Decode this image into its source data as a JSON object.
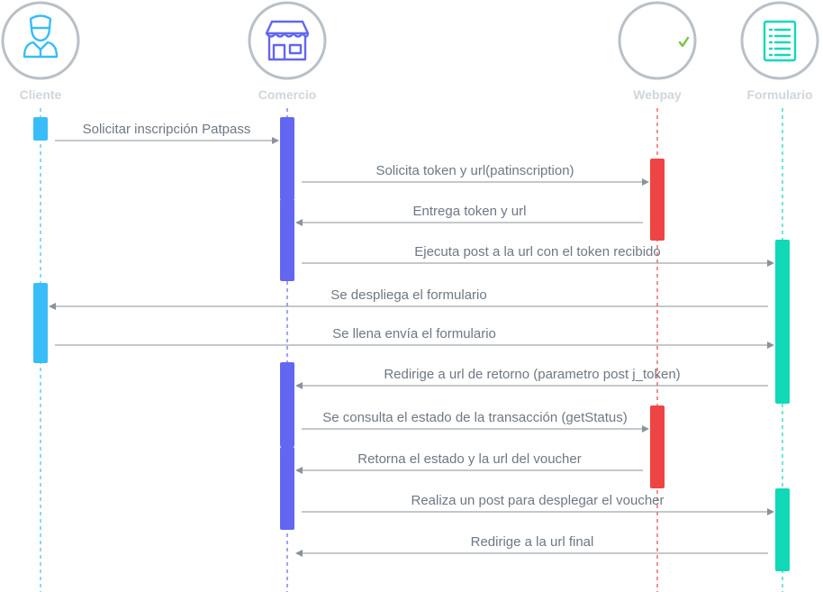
{
  "actors": [
    {
      "id": "cliente",
      "name": "Cliente",
      "color": "#38bdf8",
      "icon": "user-icon"
    },
    {
      "id": "comercio",
      "name": "Comercio",
      "color": "#6366f1",
      "icon": "store-icon"
    },
    {
      "id": "webpay",
      "name": "Webpay",
      "color": "#ef4444",
      "icon": "webpay-logo-icon"
    },
    {
      "id": "formulario",
      "name": "Formulario",
      "color": "#10d9b8",
      "icon": "form-document-icon"
    }
  ],
  "messages": [
    {
      "from": "cliente",
      "to": "comercio",
      "label": "Solicitar inscripción Patpass"
    },
    {
      "from": "comercio",
      "to": "webpay",
      "label": "Solicita token y url(patinscription)"
    },
    {
      "from": "webpay",
      "to": "comercio",
      "label": "Entrega token y url"
    },
    {
      "from": "comercio",
      "to": "formulario",
      "label": "Ejecuta post a la url con el token recibido"
    },
    {
      "from": "formulario",
      "to": "cliente",
      "label": "Se despliega el formulario"
    },
    {
      "from": "cliente",
      "to": "formulario",
      "label": "Se llena envía el formulario"
    },
    {
      "from": "formulario",
      "to": "comercio",
      "label": "Redirige a url de retorno (parametro post j_token)"
    },
    {
      "from": "comercio",
      "to": "webpay",
      "label": "Se consulta el estado de la transacción (getStatus)"
    },
    {
      "from": "webpay",
      "to": "comercio",
      "label": "Retorna el estado y la url del voucher"
    },
    {
      "from": "comercio",
      "to": "formulario",
      "label": "Realiza un post para desplegar el voucher"
    },
    {
      "from": "formulario",
      "to": "comercio",
      "label": "Redirige a la url final"
    }
  ],
  "activations": [
    {
      "actor": "cliente",
      "from_msg": 0,
      "to_msg": 0
    },
    {
      "actor": "comercio",
      "from_msg": 0,
      "to_msg": 1
    },
    {
      "actor": "webpay",
      "from_msg": 1,
      "to_msg": 2
    },
    {
      "actor": "comercio",
      "from_msg": 2,
      "to_msg": 3
    },
    {
      "actor": "formulario",
      "from_msg": 3,
      "to_msg": 4
    },
    {
      "actor": "cliente",
      "from_msg": 4,
      "to_msg": 5
    },
    {
      "actor": "formulario",
      "from_msg": 5,
      "to_msg": 6
    },
    {
      "actor": "comercio",
      "from_msg": 6,
      "to_msg": 7
    },
    {
      "actor": "webpay",
      "from_msg": 7,
      "to_msg": 8
    },
    {
      "actor": "comercio",
      "from_msg": 8,
      "to_msg": 9
    },
    {
      "actor": "formulario",
      "from_msg": 9,
      "to_msg": 10
    }
  ],
  "colors": {
    "circle_stroke": "#b9c0c7",
    "arrow": "#8a929b",
    "webpay_check": "#7cc242"
  }
}
